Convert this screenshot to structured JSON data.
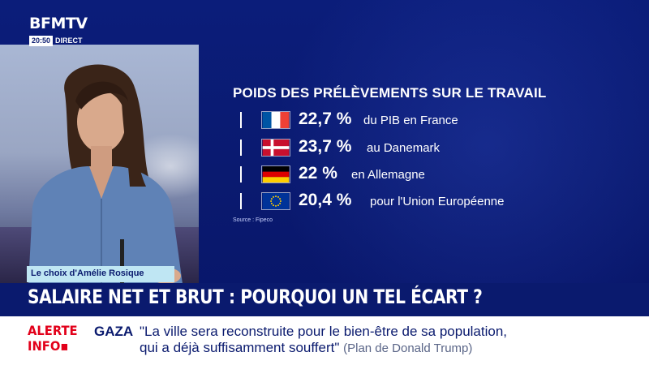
{
  "channel": {
    "name": "BFMTV",
    "time": "20:50",
    "live_label": "DIRECT"
  },
  "infographic": {
    "title": "POIDS DES PRÉLÈVEMENTS SUR LE TRAVAIL",
    "rows": [
      {
        "flag": "france-flag-icon",
        "value": "22,7 %",
        "label": "du PIB en France"
      },
      {
        "flag": "denmark-flag-icon",
        "value": "23,7 %",
        "label": "au Danemark"
      },
      {
        "flag": "germany-flag-icon",
        "value": "22 %",
        "label": "en Allemagne"
      },
      {
        "flag": "eu-flag-icon",
        "value": "20,4 %",
        "label": "pour l'Union Européenne"
      }
    ],
    "source": "Source : Fipeco"
  },
  "name_tag": "Le choix d'Amélie Rosique",
  "headline": "SALAIRE NET ET BRUT : POURQUOI UN TEL ÉCART ?",
  "ticker": {
    "alert_line1": "ALERTE",
    "alert_line2": "INFO",
    "topic": "GAZA",
    "text_line1": "\"La ville sera reconstruite pour le bien-être de sa population,",
    "text_line2": "qui a déjà suffisamment souffert\"",
    "attribution": "(Plan de Donald Trump)"
  },
  "colors": {
    "background_blue": "#0a1a6e",
    "alert_red": "#e2001a",
    "name_tag_bg": "#bfe6f3"
  }
}
